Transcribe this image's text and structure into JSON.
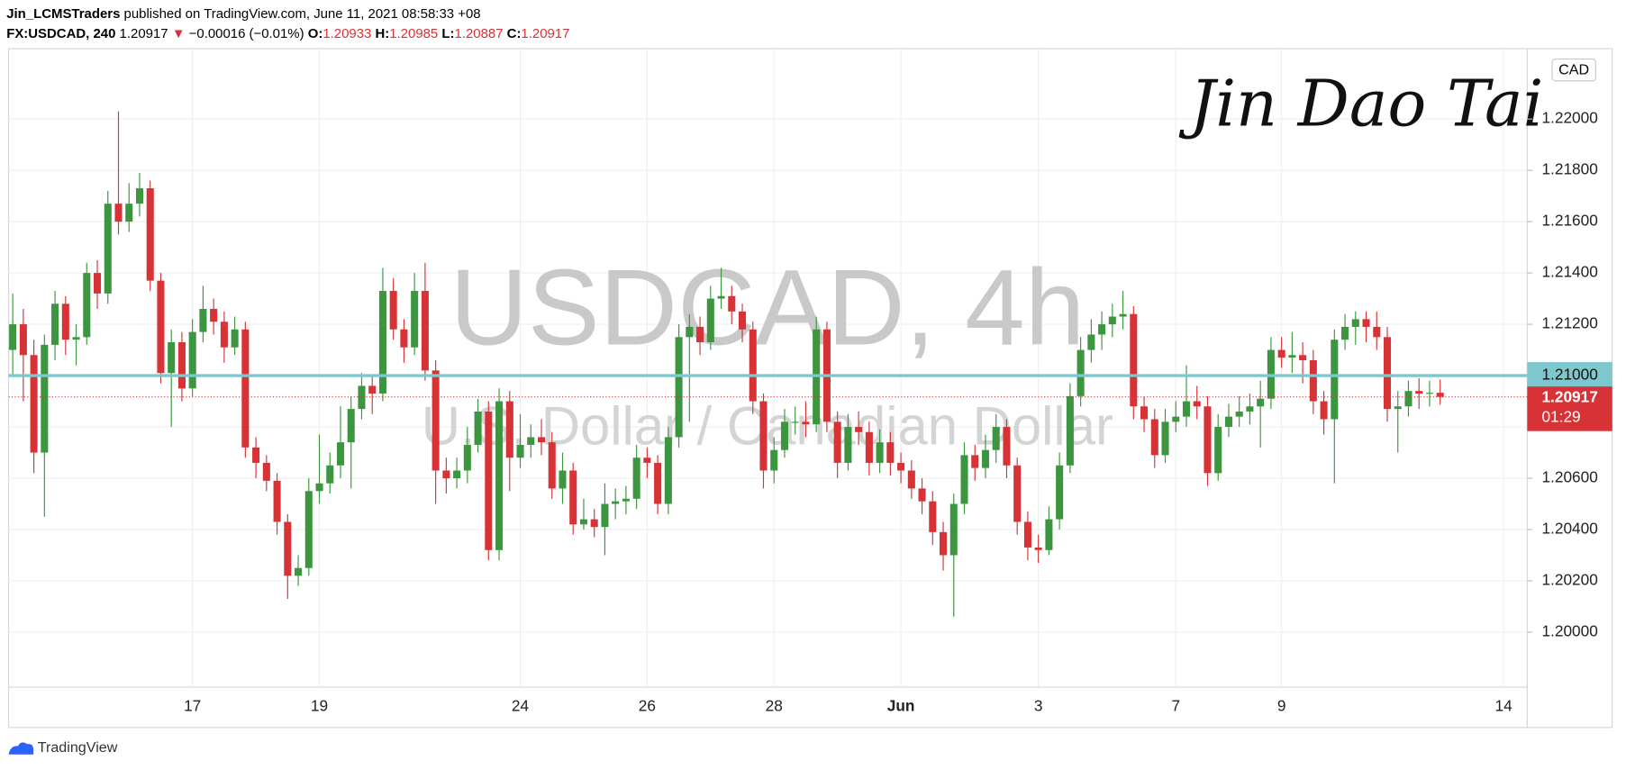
{
  "header": {
    "author": "Jin_LCMSTraders",
    "published": "published on TradingView.com, June 11, 2021 08:58:33 +08",
    "symbol": "FX:USDCAD, 240",
    "arrow": "▼",
    "change": "−0.00016 (−0.01%)",
    "o_label": "O:",
    "h_label": "H:",
    "l_label": "L:",
    "c_label": "C:"
  },
  "watermark": {
    "symbol": "USDCAD, 4h",
    "description": "U.S. Dollar / Canadian Dollar"
  },
  "signature": "Jin Dao Tai",
  "footer": "TradingView",
  "chart_data": {
    "type": "candlestick",
    "currency": "CAD",
    "up_color": "#3b963f",
    "down_color": "#d73236",
    "grid": true,
    "categories": [
      null,
      null,
      null,
      null,
      null,
      null,
      null,
      null,
      null,
      null,
      null,
      null,
      null,
      null,
      null,
      null,
      null,
      "17",
      null,
      null,
      null,
      null,
      null,
      null,
      null,
      null,
      null,
      null,
      null,
      "19",
      null,
      null,
      null,
      null,
      null,
      null,
      null,
      null,
      null,
      null,
      null,
      null,
      null,
      null,
      null,
      null,
      null,
      null,
      "24",
      null,
      null,
      null,
      null,
      null,
      null,
      null,
      null,
      null,
      null,
      null,
      "26",
      null,
      null,
      null,
      null,
      null,
      null,
      null,
      null,
      null,
      null,
      null,
      "28",
      null,
      null,
      null,
      null,
      null,
      null,
      null,
      null,
      null,
      null,
      null,
      "Jun",
      null,
      null,
      null,
      null,
      null,
      null,
      null,
      null,
      null,
      null,
      null,
      null,
      "3",
      null,
      null,
      null,
      null,
      null,
      null,
      null,
      null,
      null,
      null,
      null,
      null,
      "7",
      null,
      null,
      null,
      null,
      null,
      null,
      null,
      null,
      null,
      "9",
      null,
      null,
      null,
      null,
      null,
      null,
      null,
      null,
      null,
      null,
      null,
      null,
      null,
      null,
      null,
      null,
      null,
      null,
      null,
      null,
      "14",
      null
    ],
    "open": [
      1.211,
      1.212,
      1.2108,
      1.207,
      1.2112,
      1.2128,
      1.2114,
      1.2115,
      1.214,
      1.2132,
      1.2167,
      1.216,
      1.2167,
      1.2173,
      1.2137,
      1.2101,
      1.2113,
      1.2095,
      1.2117,
      1.2126,
      1.2121,
      1.2111,
      1.2118,
      1.2072,
      1.2066,
      1.2059,
      1.2043,
      1.2022,
      1.2025,
      1.2055,
      1.2058,
      1.2065,
      1.2074,
      1.2087,
      1.2096,
      1.2093,
      1.2133,
      1.2118,
      1.2111,
      1.2133,
      1.2102,
      1.2063,
      1.206,
      1.2063,
      1.2073,
      1.2086,
      1.2032,
      1.209,
      1.2068,
      1.2073,
      1.2076,
      1.2074,
      1.2056,
      1.2063,
      1.2042,
      1.2044,
      1.2041,
      1.205,
      1.2051,
      1.2052,
      1.2068,
      1.2066,
      1.205,
      1.2076,
      1.2115,
      1.2119,
      1.2113,
      1.213,
      1.2131,
      1.2125,
      1.2118,
      1.209,
      1.2063,
      1.2071,
      1.2082,
      1.2082,
      1.2081,
      1.2118,
      1.2082,
      1.2066,
      1.208,
      1.2078,
      1.2066,
      1.2074,
      1.2066,
      1.2063,
      1.2056,
      1.2051,
      1.2039,
      1.203,
      1.205,
      1.2069,
      1.2064,
      1.2071,
      1.208,
      1.2065,
      1.2043,
      1.2033,
      1.2032,
      1.2044,
      1.2065,
      1.2092,
      1.211,
      1.2116,
      1.212,
      1.2123,
      1.2124,
      1.2088,
      1.2083,
      1.2069,
      1.2082,
      1.2084,
      1.209,
      1.2088,
      1.2062,
      1.208,
      1.2084,
      1.2086,
      1.2088,
      1.2091,
      1.211,
      1.2107,
      1.2108,
      1.2106,
      1.209,
      1.2083,
      1.2114,
      1.2119,
      1.2122,
      1.2119,
      1.2115,
      1.2087,
      1.2088,
      1.2094,
      1.2093,
      1.20933,
      null,
      null,
      null,
      null,
      null,
      null,
      null
    ],
    "high": [
      1.2132,
      1.2126,
      1.2114,
      1.2116,
      1.2133,
      1.2131,
      1.212,
      1.2144,
      1.2145,
      1.2172,
      1.2203,
      1.2175,
      1.2179,
      1.2176,
      1.214,
      1.2118,
      1.2117,
      1.2122,
      1.2135,
      1.213,
      1.2125,
      1.2123,
      1.2121,
      1.2076,
      1.2069,
      1.2062,
      1.2046,
      1.203,
      1.206,
      1.2077,
      1.207,
      1.2088,
      1.2092,
      1.2101,
      1.21,
      1.2142,
      1.2138,
      1.2122,
      1.214,
      1.2144,
      1.2106,
      1.2068,
      1.2068,
      1.208,
      1.2091,
      1.209,
      1.2095,
      1.2094,
      1.2085,
      1.2081,
      1.2083,
      1.2078,
      1.207,
      1.2066,
      1.2052,
      1.2048,
      1.2058,
      1.2056,
      1.2057,
      1.2073,
      1.2072,
      1.2069,
      1.208,
      1.212,
      1.2124,
      1.2123,
      1.2135,
      1.2142,
      1.2135,
      1.2128,
      1.2121,
      1.2093,
      1.2076,
      1.2087,
      1.2088,
      1.209,
      1.2123,
      1.2121,
      1.2086,
      1.2085,
      1.2086,
      1.2082,
      1.2079,
      1.2078,
      1.207,
      1.2067,
      1.206,
      1.2055,
      1.2043,
      1.2054,
      1.2074,
      1.2073,
      1.2077,
      1.2085,
      1.2083,
      1.2068,
      1.2047,
      1.2038,
      1.2049,
      1.207,
      1.2097,
      1.2115,
      1.2122,
      1.2125,
      1.2128,
      1.2133,
      1.2127,
      1.2092,
      1.2087,
      1.2087,
      1.209,
      1.2104,
      1.2096,
      1.2092,
      1.2085,
      1.2089,
      1.2092,
      1.2093,
      1.2098,
      1.2115,
      1.2115,
      1.2117,
      1.2113,
      1.211,
      1.2094,
      1.2118,
      1.2124,
      1.2125,
      1.2125,
      1.2125,
      1.2119,
      1.2094,
      1.2098,
      1.2099,
      1.2098,
      1.20985,
      null,
      null,
      null,
      null,
      null,
      null,
      null
    ],
    "low": [
      1.21,
      1.209,
      1.2062,
      1.2045,
      1.2106,
      1.2108,
      1.2104,
      1.2112,
      1.2126,
      1.2128,
      1.2155,
      1.2156,
      1.2162,
      1.2133,
      1.2097,
      1.208,
      1.209,
      1.2092,
      1.2113,
      1.2116,
      1.2105,
      1.2108,
      1.2068,
      1.206,
      1.2055,
      1.2038,
      1.2013,
      1.2018,
      1.2022,
      1.205,
      1.2054,
      1.206,
      1.2056,
      1.2083,
      1.2085,
      1.209,
      1.2114,
      1.2105,
      1.2108,
      1.2098,
      1.205,
      1.2054,
      1.2056,
      1.2058,
      1.207,
      1.2028,
      1.2028,
      1.2055,
      1.2064,
      1.2068,
      1.2069,
      1.2052,
      1.205,
      1.2038,
      1.204,
      1.2037,
      1.203,
      1.2044,
      1.2046,
      1.2048,
      1.206,
      1.2046,
      1.2046,
      1.2072,
      1.2082,
      1.2108,
      1.211,
      1.2126,
      1.212,
      1.2113,
      1.2085,
      1.2056,
      1.2058,
      1.2068,
      1.2077,
      1.2076,
      1.2078,
      1.2078,
      1.206,
      1.2063,
      1.2073,
      1.2061,
      1.2062,
      1.2061,
      1.2058,
      1.2052,
      1.2046,
      1.2034,
      1.2024,
      1.2006,
      1.2046,
      1.2059,
      1.206,
      1.2066,
      1.206,
      1.2038,
      1.2028,
      1.2027,
      1.203,
      1.204,
      1.2062,
      1.2088,
      1.2105,
      1.211,
      1.2115,
      1.2118,
      1.2083,
      1.2078,
      1.2064,
      1.2066,
      1.2078,
      1.208,
      1.2083,
      1.2057,
      1.2059,
      1.2076,
      1.208,
      1.2081,
      1.2072,
      1.2087,
      1.2103,
      1.2101,
      1.2097,
      1.2085,
      1.2077,
      1.2058,
      1.211,
      1.2112,
      1.2113,
      1.211,
      1.2082,
      1.207,
      1.2084,
      1.2087,
      1.2088,
      1.20887,
      null,
      null,
      null,
      null,
      null,
      null,
      null
    ],
    "close": [
      1.212,
      1.2108,
      1.207,
      1.2112,
      1.2128,
      1.2114,
      1.2115,
      1.214,
      1.2132,
      1.2167,
      1.216,
      1.2167,
      1.2173,
      1.2137,
      1.2101,
      1.2113,
      1.2095,
      1.2117,
      1.2126,
      1.2121,
      1.2111,
      1.2118,
      1.2072,
      1.2066,
      1.2059,
      1.2043,
      1.2022,
      1.2025,
      1.2055,
      1.2058,
      1.2065,
      1.2074,
      1.2087,
      1.2096,
      1.2093,
      1.2133,
      1.2118,
      1.2111,
      1.2133,
      1.2102,
      1.2063,
      1.206,
      1.2063,
      1.2073,
      1.2086,
      1.2032,
      1.209,
      1.2068,
      1.2073,
      1.2076,
      1.2074,
      1.2056,
      1.2063,
      1.2042,
      1.2044,
      1.2041,
      1.205,
      1.2051,
      1.2052,
      1.2068,
      1.2066,
      1.205,
      1.2076,
      1.2115,
      1.2119,
      1.2113,
      1.213,
      1.2131,
      1.2125,
      1.2118,
      1.209,
      1.2063,
      1.2071,
      1.2082,
      1.2082,
      1.2081,
      1.2118,
      1.2082,
      1.2066,
      1.208,
      1.2078,
      1.2066,
      1.2074,
      1.2066,
      1.2063,
      1.2056,
      1.2051,
      1.2039,
      1.203,
      1.205,
      1.2069,
      1.2064,
      1.2071,
      1.208,
      1.2065,
      1.2043,
      1.2033,
      1.2032,
      1.2044,
      1.2065,
      1.2092,
      1.211,
      1.2116,
      1.212,
      1.2123,
      1.2124,
      1.2088,
      1.2083,
      1.2069,
      1.2082,
      1.2084,
      1.209,
      1.2088,
      1.2062,
      1.208,
      1.2084,
      1.2086,
      1.2088,
      1.2091,
      1.211,
      1.2107,
      1.2108,
      1.2106,
      1.209,
      1.2083,
      1.2114,
      1.2119,
      1.2122,
      1.2119,
      1.2115,
      1.2087,
      1.2088,
      1.2094,
      1.2093,
      1.20933,
      1.20917,
      null,
      null,
      null,
      null,
      null,
      null,
      null
    ],
    "ylim": [
      1.1979,
      1.2227
    ],
    "yticks": [
      {
        "value": 1.2,
        "label": "1.20000"
      },
      {
        "value": 1.202,
        "label": "1.20200"
      },
      {
        "value": 1.204,
        "label": "1.20400"
      },
      {
        "value": 1.206,
        "label": "1.20600"
      },
      {
        "value": 1.208,
        "label": "1.20800"
      },
      {
        "value": 1.21,
        "label": "1.21000"
      },
      {
        "value": 1.212,
        "label": "1.21200"
      },
      {
        "value": 1.214,
        "label": "1.21400"
      },
      {
        "value": 1.216,
        "label": "1.21600"
      },
      {
        "value": 1.218,
        "label": "1.21800"
      },
      {
        "value": 1.22,
        "label": "1.22000"
      }
    ],
    "price_line": {
      "value": 1.21,
      "label": "1.21000",
      "color": "#7dc7cf"
    },
    "countdown": "01:29"
  }
}
